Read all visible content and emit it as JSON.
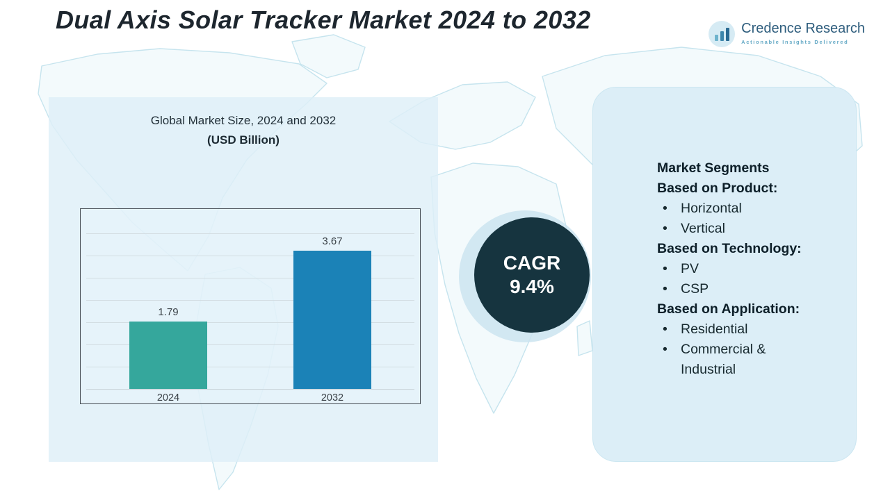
{
  "title": "Dual Axis Solar Tracker Market 2024 to 2032",
  "logo": {
    "name": "Credence Research",
    "tagline": "Actionable Insights Delivered"
  },
  "chart_data": {
    "type": "bar",
    "title": "Global Market Size, 2024 and 2032",
    "subtitle": "(USD Billion)",
    "categories": [
      "2024",
      "2032"
    ],
    "values": [
      1.79,
      3.67
    ],
    "xlabel": "",
    "ylabel": "",
    "ylim": [
      0,
      4.5
    ],
    "grid": true,
    "legend": false,
    "bar_colors": [
      "#35a79c",
      "#1b82b7"
    ]
  },
  "cagr_badge": {
    "label": "CAGR",
    "value": "9.4%",
    "bg_color": "#16343f"
  },
  "segments_panel": {
    "title": "Market Segments",
    "sections": [
      {
        "heading": "Based on Product:",
        "items": [
          "Horizontal",
          "Vertical"
        ]
      },
      {
        "heading": "Based on Technology:",
        "items": [
          "PV",
          "CSP"
        ]
      },
      {
        "heading": "Based on Application:",
        "items": [
          "Residential",
          "Commercial & Industrial"
        ]
      }
    ]
  }
}
